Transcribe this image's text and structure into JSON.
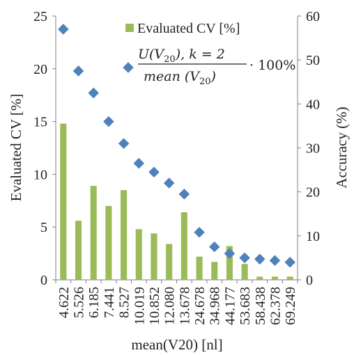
{
  "chart_data": {
    "type": "bar+scatter",
    "x_label": "mean(V20) [nl]",
    "categories": [
      "4.622",
      "5.526",
      "6.185",
      "7.441",
      "8.527",
      "10.019",
      "10.852",
      "12.080",
      "13.678",
      "24.678",
      "34.968",
      "44.177",
      "53.683",
      "58.438",
      "62.378",
      "69.249"
    ],
    "left_axis": {
      "label": "Evaluated CV [%]",
      "ylim": [
        0,
        25
      ],
      "ticks": [
        "0",
        "5",
        "10",
        "15",
        "20",
        "25"
      ]
    },
    "right_axis": {
      "label": "Accuracy (%)",
      "ylim": [
        0,
        60
      ],
      "ticks": [
        "0",
        "10",
        "20",
        "30",
        "40",
        "50",
        "60"
      ]
    },
    "series": [
      {
        "name": "Evaluated CV [%]",
        "type": "bar",
        "axis": "left",
        "color": "#9BBB59",
        "values": [
          14.8,
          5.6,
          8.9,
          7.0,
          8.5,
          4.8,
          4.4,
          3.4,
          6.4,
          2.2,
          1.7,
          3.2,
          1.5,
          0.3,
          0.3,
          0.3
        ]
      },
      {
        "name": "U(V20),k=2 / mean (V20) · 100%",
        "type": "scatter",
        "axis": "right",
        "color": "#4F81BD",
        "values": [
          57.0,
          47.5,
          42.5,
          36.0,
          31.0,
          26.5,
          24.5,
          22.0,
          19.5,
          10.8,
          7.5,
          6.0,
          5.0,
          4.7,
          4.4,
          4.0
        ]
      }
    ],
    "legend": {
      "position": "top-right",
      "bar_label": "Evaluated CV [%]",
      "formula": {
        "num_prefix": "U(V",
        "num_sub": "20",
        "num_suffix": "), k = 2",
        "den_prefix": "mean (V",
        "den_sub": "20",
        "den_suffix": ")",
        "tail": "· 100%"
      }
    }
  }
}
